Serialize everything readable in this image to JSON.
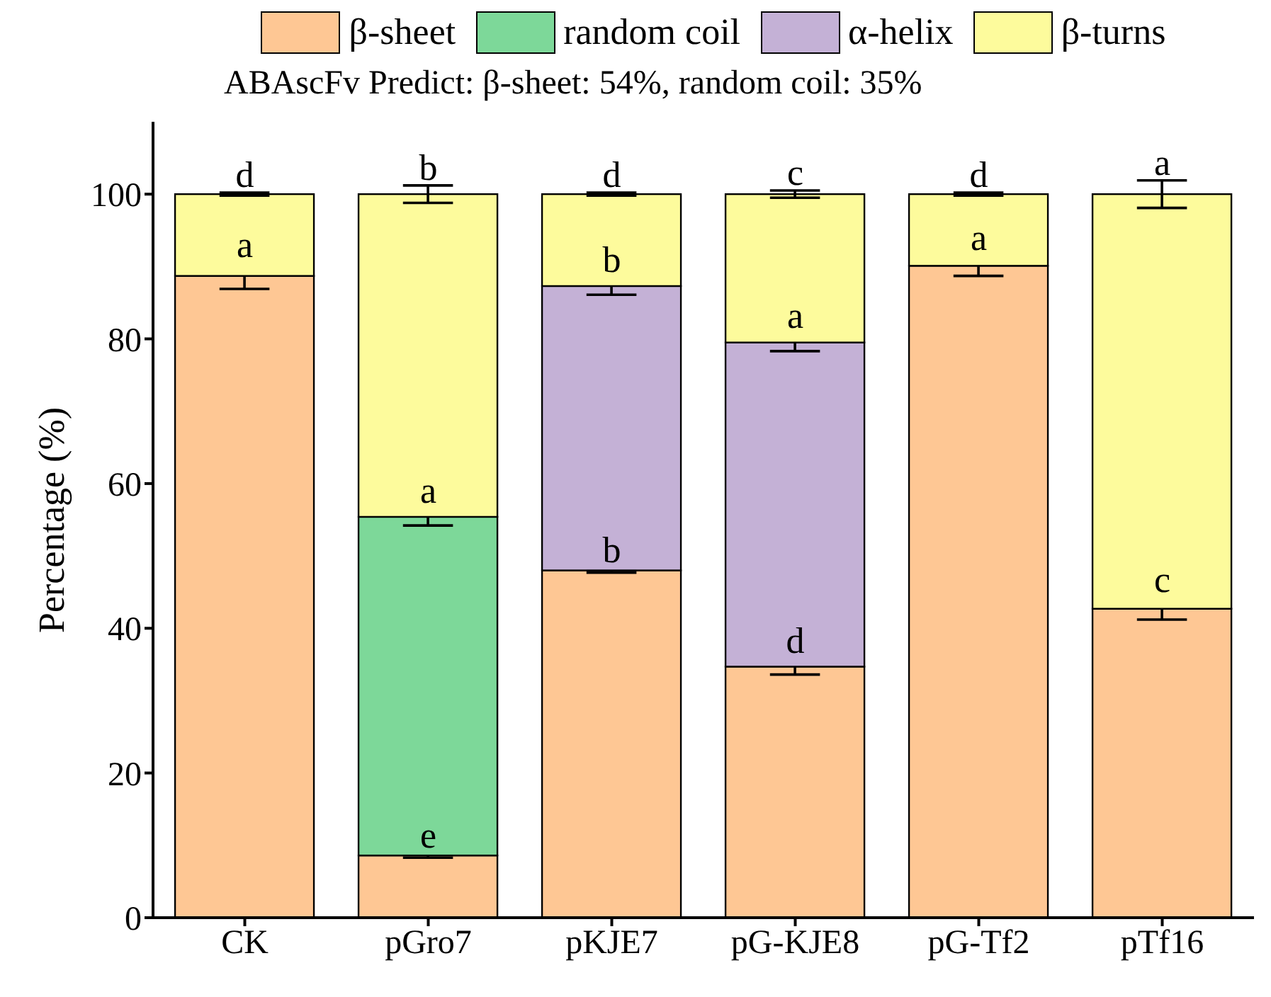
{
  "chart_data": {
    "type": "bar",
    "stacked": true,
    "subtitle": "ABAscFv Predict: β-sheet: 54%, random coil: 35%",
    "ylabel": "Percentage (%)",
    "categories": [
      "CK",
      "pGro7",
      "pKJE7",
      "pG-KJE8",
      "pG-Tf2",
      "pTf16"
    ],
    "series": [
      {
        "name": "β-sheet",
        "color": "#fec794",
        "values": [
          88.7,
          8.6,
          48.0,
          34.7,
          90.1,
          42.7
        ],
        "errors": [
          1.8,
          0.3,
          0.3,
          1.1,
          1.4,
          1.5
        ]
      },
      {
        "name": "random coil",
        "color": "#7dd899",
        "values": [
          null,
          46.8,
          null,
          null,
          null,
          null
        ],
        "errors": [
          null,
          1.2,
          null,
          null,
          null,
          null
        ]
      },
      {
        "name": "α-helix",
        "color": "#c4b1d6",
        "values": [
          null,
          null,
          39.3,
          44.8,
          null,
          null
        ],
        "errors": [
          null,
          null,
          1.2,
          1.2,
          null,
          null
        ]
      },
      {
        "name": "β-turns",
        "color": "#fdfb9c",
        "values": [
          11.3,
          44.6,
          12.7,
          20.5,
          9.9,
          57.3
        ],
        "errors": [
          0.2,
          1.2,
          0.2,
          0.5,
          0.2,
          1.9
        ]
      }
    ],
    "ylim": [
      0,
      110
    ],
    "yticks": [
      0,
      20,
      40,
      60,
      80,
      100
    ],
    "grid": false,
    "legend": "top",
    "annotations": [
      {
        "text": "a",
        "x": "CK",
        "y": 88.7
      },
      {
        "text": "d",
        "x": "CK",
        "y": 100
      },
      {
        "text": "e",
        "x": "pGro7",
        "y": 8.6
      },
      {
        "text": "a",
        "x": "pGro7",
        "y": 55.4
      },
      {
        "text": "b",
        "x": "pGro7",
        "y": 100
      },
      {
        "text": "b",
        "x": "pKJE7",
        "y": 48.0
      },
      {
        "text": "b",
        "x": "pKJE7",
        "y": 87.3
      },
      {
        "text": "d",
        "x": "pKJE7",
        "y": 100
      },
      {
        "text": "d",
        "x": "pG-KJE8",
        "y": 34.7
      },
      {
        "text": "a",
        "x": "pG-KJE8",
        "y": 79.5
      },
      {
        "text": "c",
        "x": "pG-KJE8",
        "y": 100
      },
      {
        "text": "a",
        "x": "pG-Tf2",
        "y": 90.1
      },
      {
        "text": "d",
        "x": "pG-Tf2",
        "y": 100
      },
      {
        "text": "c",
        "x": "pTf16",
        "y": 42.7
      },
      {
        "text": "a",
        "x": "pTf16",
        "y": 100
      }
    ]
  }
}
